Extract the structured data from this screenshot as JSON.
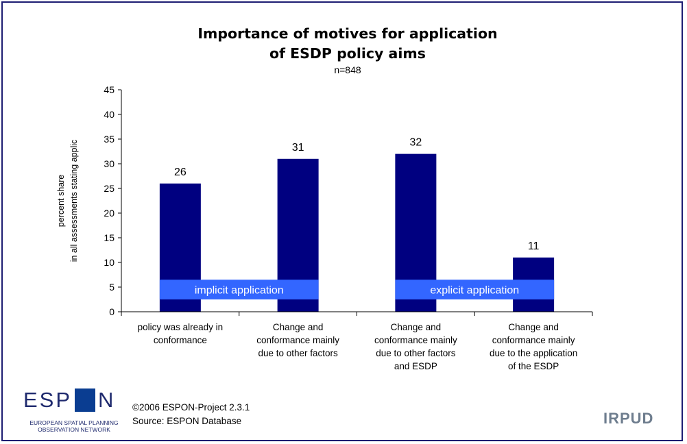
{
  "chart_data": {
    "type": "bar",
    "title_lines": [
      "Importance of motives for application",
      "of ESDP policy aims"
    ],
    "subtitle": "n=848",
    "ylabel_lines": [
      "percent share",
      "in all assessments stating applic"
    ],
    "xlabel": "",
    "ylim": [
      0,
      45
    ],
    "yticks": [
      0,
      5,
      10,
      15,
      20,
      25,
      30,
      35,
      40,
      45
    ],
    "grid": false,
    "categories": [
      [
        "policy was already in",
        "conformance"
      ],
      [
        "Change and",
        "conformance mainly",
        "due to other factors"
      ],
      [
        "Change and",
        "conformance mainly",
        "due to other factors",
        "and ESDP"
      ],
      [
        "Change and",
        "conformance mainly",
        "due to the application",
        "of the ESDP"
      ]
    ],
    "values": [
      26,
      31,
      32,
      11
    ],
    "data_labels": [
      "26",
      "31",
      "32",
      "11"
    ],
    "bar_color": "#000080",
    "group_bands": [
      {
        "label": "implicit application",
        "categories": [
          0,
          1
        ],
        "y_range": [
          2.5,
          6.5
        ],
        "color": "#3366ff"
      },
      {
        "label": "explicit application",
        "categories": [
          2,
          3
        ],
        "y_range": [
          2.5,
          6.5
        ],
        "color": "#3366ff"
      }
    ]
  },
  "footer": {
    "espon_logo_text": "ESP N",
    "espon_sub_lines": [
      "EUROPEAN SPATIAL PLANNING",
      "OBSERVATION NETWORK"
    ],
    "credit_line1": "©2006  ESPON-Project 2.3.1",
    "credit_line2": "Source: ESPON Database",
    "irpud_logo_text": "IRPUD"
  }
}
